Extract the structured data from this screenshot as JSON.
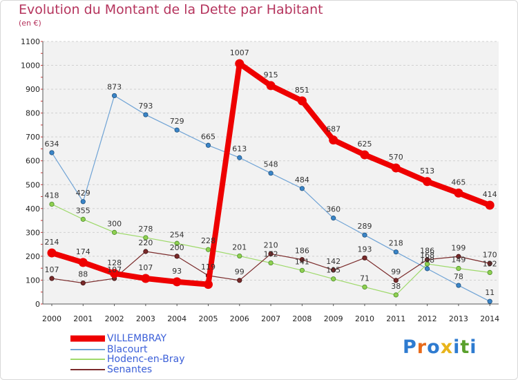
{
  "title": "Evolution du Montant de la Dette par Habitant",
  "unit": "(en €)",
  "logo": {
    "letters": [
      "P",
      "r",
      "o",
      "x",
      "i",
      "t",
      "i"
    ],
    "colors": [
      "#2e7bd0",
      "#e86a1a",
      "#2e7bd0",
      "#e8b41a",
      "#2e7bd0",
      "#5aa02c",
      "#2e7bd0"
    ]
  },
  "chart_data": {
    "type": "line",
    "title": "Evolution du Montant de la Dette par Habitant",
    "ylabel": "(en €)",
    "xlabel": "",
    "x": [
      "2000",
      "2001",
      "2002",
      "2003",
      "2004",
      "2005",
      "2006",
      "2007",
      "2008",
      "2009",
      "2010",
      "2011",
      "2012",
      "2013",
      "2014"
    ],
    "ylim": [
      0,
      1100
    ],
    "yticks": [
      0,
      100,
      200,
      300,
      400,
      500,
      600,
      700,
      800,
      900,
      1000,
      1100
    ],
    "grid": "horizontal",
    "legend": "bottom-left",
    "series": [
      {
        "name": "VILLEMBRAY",
        "color": "#ee0000",
        "values": [
          214,
          174,
          128,
          107,
          93,
          82,
          1007,
          915,
          851,
          687,
          625,
          570,
          513,
          465,
          414
        ],
        "labels": [
          "214",
          "174",
          "128",
          "107",
          "93",
          "",
          "1007",
          "915",
          "851",
          "687",
          "625",
          "570",
          "513",
          "465",
          "414"
        ]
      },
      {
        "name": "Blacourt",
        "color": "#6fa3d5",
        "values": [
          634,
          429,
          873,
          793,
          729,
          665,
          613,
          548,
          484,
          360,
          289,
          218,
          148,
          78,
          11
        ],
        "labels": [
          "634",
          "429",
          "873",
          "793",
          "729",
          "665",
          "613",
          "548",
          "484",
          "360",
          "289",
          "218",
          "148",
          "78",
          "11"
        ]
      },
      {
        "name": "Hodenc-en-Bray",
        "color": "#9ed96a",
        "values": [
          418,
          355,
          300,
          278,
          254,
          228,
          201,
          172,
          141,
          105,
          71,
          38,
          168,
          149,
          132
        ],
        "labels": [
          "418",
          "355",
          "300",
          "278",
          "254",
          "228",
          "201",
          "172",
          "141",
          "105",
          "71",
          "38",
          "168",
          "149",
          "132"
        ]
      },
      {
        "name": "Senantes",
        "color": "#7a2a2a",
        "values": [
          107,
          88,
          107,
          220,
          200,
          119,
          99,
          210,
          186,
          142,
          193,
          99,
          186,
          199,
          170
        ],
        "labels": [
          "107",
          "88",
          "107",
          "220",
          "200",
          "119",
          "99",
          "210",
          "186",
          "142",
          "193",
          "99",
          "186",
          "199",
          "170"
        ]
      }
    ]
  }
}
